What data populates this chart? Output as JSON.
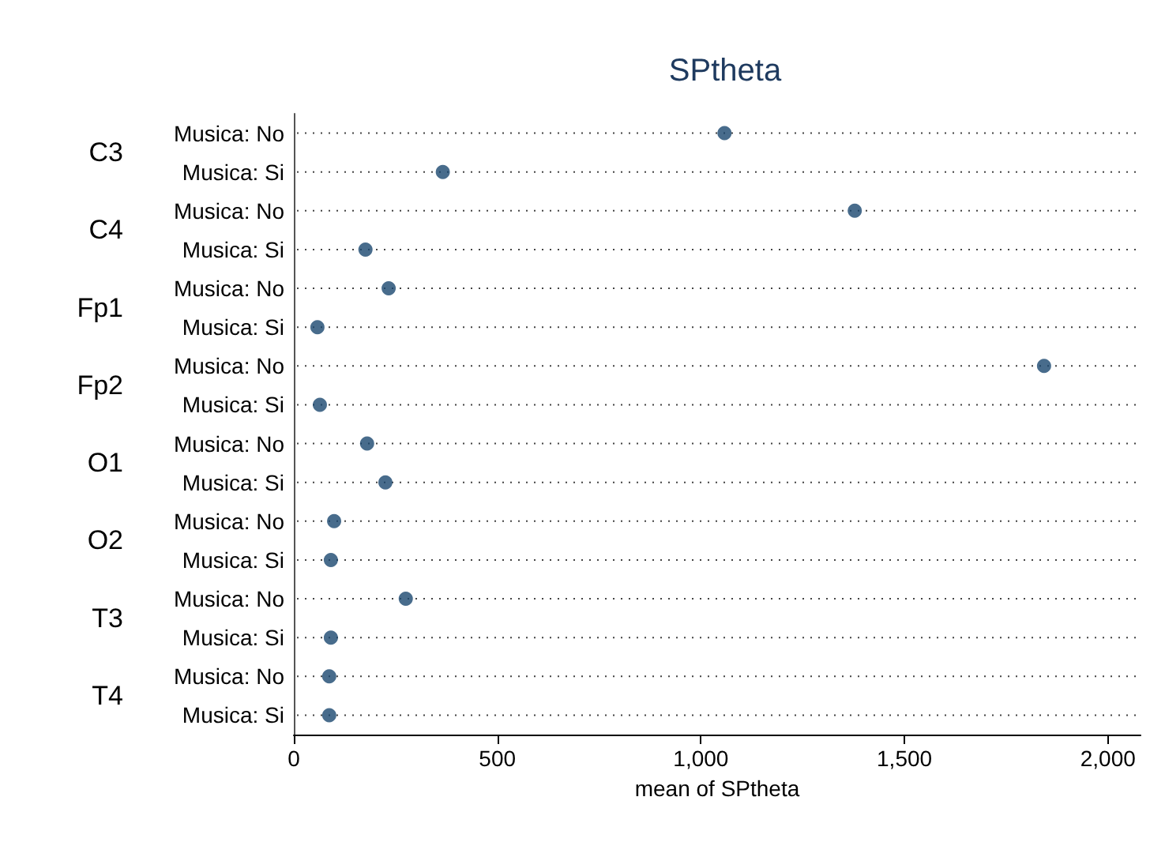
{
  "chart_data": {
    "type": "scatter",
    "orientation": "horizontal",
    "title": "SPtheta",
    "xlabel": "mean of SPtheta",
    "categories": [
      "Musica: No",
      "Musica: Si",
      "Musica: No",
      "Musica: Si",
      "Musica: No",
      "Musica: Si",
      "Musica: No",
      "Musica: Si",
      "Musica: No",
      "Musica: Si",
      "Musica: No",
      "Musica: Si",
      "Musica: No",
      "Musica: Si",
      "Musica: No",
      "Musica: Si"
    ],
    "values": [
      1058,
      366,
      1378,
      176,
      233,
      58,
      1843,
      64,
      180,
      225,
      99,
      91,
      275,
      91,
      87,
      87
    ],
    "color": "#1a476f",
    "annotations": [
      "C3",
      "C4",
      "Fp1",
      "Fp2",
      "O1",
      "O2",
      "T3",
      "T4"
    ],
    "xlim": [
      0,
      2080
    ],
    "xticks": [
      0,
      500,
      {
        "value": 1000,
        "label": "1,000"
      },
      {
        "value": 1500,
        "label": "1,500"
      },
      {
        "value": 2000,
        "label": "2,000"
      }
    ],
    "grid": "y",
    "marker": "circle"
  }
}
